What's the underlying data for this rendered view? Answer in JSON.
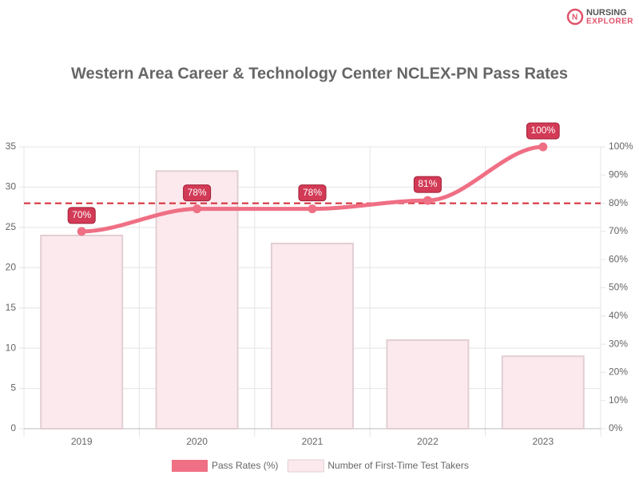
{
  "logo": {
    "line1": "NURSING",
    "line2": "EXPLORER"
  },
  "chart_data": {
    "type": "combo",
    "title": "Western Area Career & Technology Center NCLEX-PN Pass Rates",
    "categories": [
      "2019",
      "2020",
      "2021",
      "2022",
      "2023"
    ],
    "series": [
      {
        "name": "Pass Rates (%)",
        "type": "line",
        "axis": "y2",
        "color": "#ef6f84",
        "values": [
          70,
          78,
          78,
          81,
          100
        ],
        "value_labels": [
          "70%",
          "78%",
          "78%",
          "81%",
          "100%"
        ]
      },
      {
        "name": "Number of First-Time Test Takers",
        "type": "bar",
        "axis": "y",
        "color": "#fbe9ed",
        "values": [
          24,
          32,
          23,
          11,
          9
        ]
      }
    ],
    "ylim": [
      0,
      35
    ],
    "yticks": [
      0,
      5,
      10,
      15,
      20,
      25,
      30,
      35
    ],
    "y2lim": [
      0,
      100
    ],
    "y2ticks": [
      {
        "value": 0,
        "label": "0%"
      },
      {
        "value": 10,
        "label": "10%"
      },
      {
        "value": 20,
        "label": "20%"
      },
      {
        "value": 30,
        "label": "30%"
      },
      {
        "value": 40,
        "label": "40%"
      },
      {
        "value": 50,
        "label": "50%"
      },
      {
        "value": 60,
        "label": "60%"
      },
      {
        "value": 70,
        "label": "70%"
      },
      {
        "value": 80,
        "label": "80%"
      },
      {
        "value": 90,
        "label": "90%"
      },
      {
        "value": 100,
        "label": "100%"
      }
    ],
    "reference_line": {
      "value": 80,
      "axis": "y2",
      "color": "#d42a35"
    },
    "grid": true,
    "legend": "bottom"
  }
}
